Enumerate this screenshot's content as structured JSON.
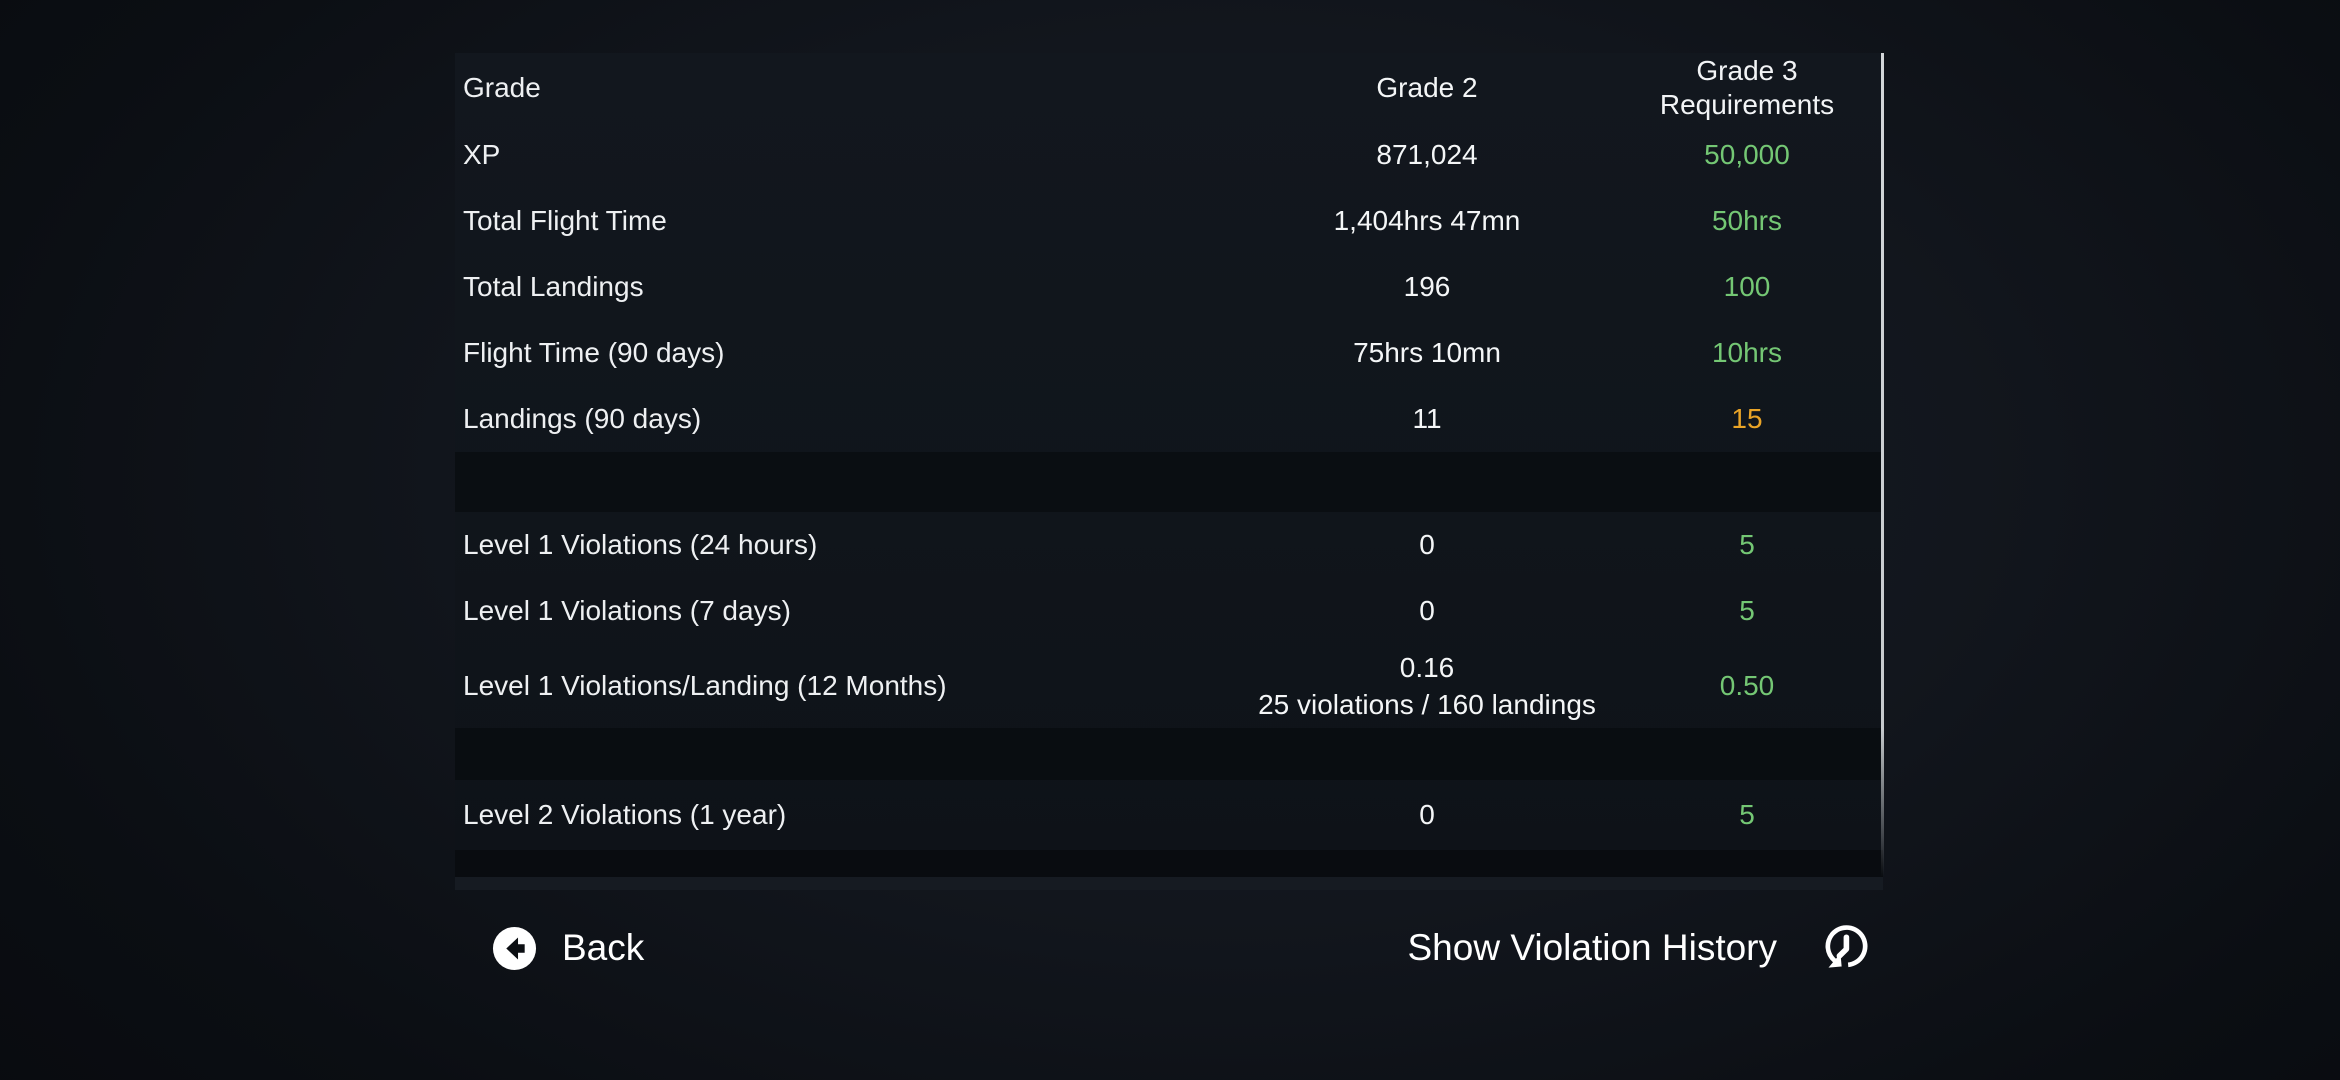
{
  "colors": {
    "met": "#74c774",
    "unmet": "#e9a427",
    "text": "#f1f3f5",
    "scrollbar": "#ccd0d4"
  },
  "table": {
    "header": {
      "label": "Grade",
      "current": "Grade 2",
      "required_line1": "Grade 3",
      "required_line2": "Requirements"
    },
    "rows": [
      {
        "kind": "row",
        "label": "XP",
        "current": "871,024",
        "required": "50,000",
        "status": "met"
      },
      {
        "kind": "row",
        "label": "Total Flight Time",
        "current": "1,404hrs 47mn",
        "required": "50hrs",
        "status": "met"
      },
      {
        "kind": "row",
        "label": "Total Landings",
        "current": "196",
        "required": "100",
        "status": "met"
      },
      {
        "kind": "row",
        "label": "Flight Time (90 days)",
        "current": "75hrs 10mn",
        "required": "10hrs",
        "status": "met"
      },
      {
        "kind": "row",
        "label": "Landings (90 days)",
        "current": "11",
        "required": "15",
        "status": "unmet"
      },
      {
        "kind": "sep-a"
      },
      {
        "kind": "row",
        "label": "Level 1 Violations (24 hours)",
        "current": "0",
        "required": "5",
        "status": "met"
      },
      {
        "kind": "row",
        "label": "Level 1 Violations (7 days)",
        "current": "0",
        "required": "5",
        "status": "met"
      },
      {
        "kind": "double",
        "label": "Level 1 Violations/Landing (12 Months)",
        "current": "0.16",
        "current_sub": "25 violations / 160 landings",
        "required": "0.50",
        "status": "met"
      },
      {
        "kind": "sep-b"
      },
      {
        "kind": "row-last",
        "label": "Level 2 Violations (1 year)",
        "current": "0",
        "required": "5",
        "status": "met"
      },
      {
        "kind": "strip-dark"
      },
      {
        "kind": "strip-light"
      }
    ]
  },
  "footer": {
    "back_label": "Back",
    "history_label": "Show Violation History"
  }
}
